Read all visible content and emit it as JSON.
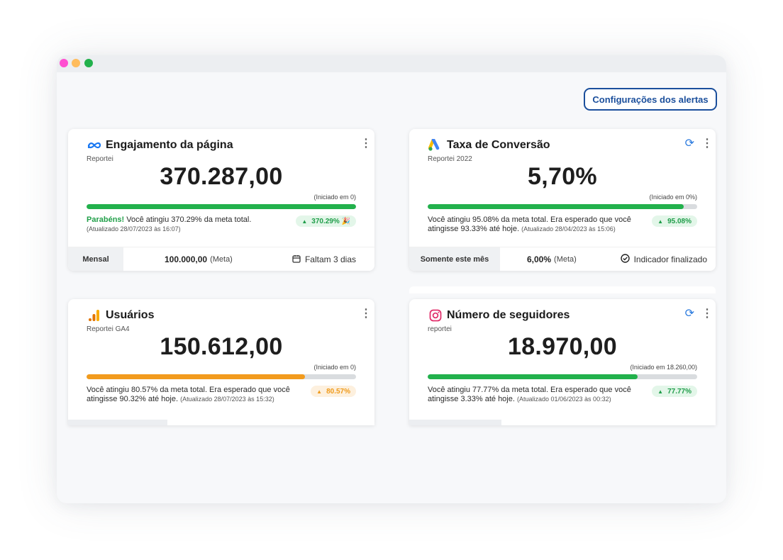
{
  "toolbar": {
    "alerts_label": "Configurações dos alertas"
  },
  "colors": {
    "green": "#22b14c",
    "orange": "#f29b1d",
    "link": "#1b4f9c",
    "refresh": "#2a7ade"
  },
  "cards": [
    {
      "title": "Engajamento da página",
      "icon": "meta-icon",
      "source": "Reportei",
      "value": "370.287,00",
      "started": "(Iniciado em 0)",
      "progress": 1.0,
      "bar_color": "#22b14c",
      "message_strong": "Parabéns!",
      "message": " Você atingiu 370.29% da meta total.",
      "updated": "(Atualizado 28/07/2023 às 16:07)",
      "badge": "370.29% 🎉",
      "period": "Mensal",
      "goal_value": "100.000,00",
      "goal_suffix": "(Meta)",
      "status": "Faltam 3 dias"
    },
    {
      "title": "Taxa de Conversão",
      "icon": "google-ads-icon",
      "source": "Reportei 2022",
      "value": "5,70%",
      "started": "(Iniciado em 0%)",
      "progress": 0.95,
      "bar_color": "#22b14c",
      "message": "Você atingiu 95.08% da meta total. Era esperado que você atingisse 93.33% até hoje.",
      "updated": "(Atualizado 28/04/2023 às 15:06)",
      "badge": "95.08%",
      "period": "Somente este mês",
      "goal_value": "6,00%",
      "goal_suffix": "(Meta)",
      "status": "Indicador finalizado"
    },
    {
      "title": "Usuários",
      "icon": "google-analytics-icon",
      "source": "Reportei GA4",
      "value": "150.612,00",
      "started": "(Iniciado em 0)",
      "progress": 0.81,
      "bar_color": "#f29b1d",
      "message": "Você atingiu 80.57% da meta total. Era esperado que você atingisse 90.32% até hoje.",
      "updated": "(Atualizado 28/07/2023 às 15:32)",
      "badge": "80.57%"
    },
    {
      "title": "Número de seguidores",
      "icon": "instagram-icon",
      "source": "reportei",
      "value": "18.970,00",
      "started": "(Iniciado em 18.260,00)",
      "progress": 0.78,
      "bar_color": "#22b14c",
      "message": "Você atingiu 77.77% da meta total. Era esperado que você atingisse 3.33% até hoje.",
      "updated": "(Atualizado 01/06/2023 às 00:32)",
      "badge": "77.77%"
    }
  ]
}
